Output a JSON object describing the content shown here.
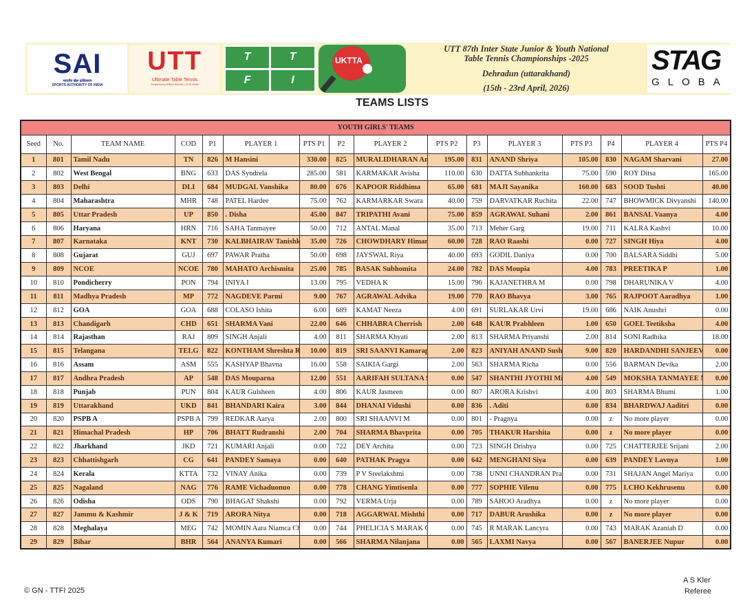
{
  "banner": {
    "sai": {
      "logo": "SAI",
      "hindi": "भारतीय खेल प्राधिकरण",
      "sub": "SPORTS AUTHORITY OF INDIA"
    },
    "utt": {
      "logo": "UTT",
      "sub": "Ultimate Table Tennis",
      "powered": "Powered by NIRAJ BAJAJ | VITA DANI"
    },
    "ttfi": [
      "T",
      "T",
      "F",
      "I"
    ],
    "uktta": "UKTTA",
    "event_line1": "UTT 87th Inter State Junior & Youth National",
    "event_line2": "Table Tennis Championships -2025",
    "location": "Dehradun (uttarakhand)",
    "dates": "(15th - 23rd April, 2026)",
    "stag": {
      "logo": "STAG",
      "sub": "GLOBA"
    }
  },
  "page_title": "TEAMS LISTS",
  "table": {
    "section_title": "YOUTH GIRLS' TEAMS",
    "headers": [
      "Seed",
      "No.",
      "TEAM NAME",
      "COD",
      "P1",
      "PLAYER 1",
      "PTS P1",
      "P2",
      "PLAYER 2",
      "PTS P2",
      "P3",
      "PLAYER 3",
      "PTS P3",
      "P4",
      "PLAYER 4",
      "PTS P4"
    ],
    "rows": [
      [
        "1",
        "801",
        "Tamil Nadu",
        "TN",
        "826",
        "M Hansini",
        "330.00",
        "825",
        "MURALIDHARAN Anany",
        "195.00",
        "831",
        "ANAND Shriya",
        "105.00",
        "830",
        "NAGAM Sharvani",
        "27.00"
      ],
      [
        "2",
        "802",
        "West Bengal",
        "BNG",
        "633",
        "DAS Syndrela",
        "285.00",
        "581",
        "KARMAKAR Avisha",
        "110.00",
        "630",
        "DATTA Subhankrita",
        "75.00",
        "590",
        "ROY Ditsa",
        "165.00"
      ],
      [
        "3",
        "803",
        "Delhi",
        "DLI",
        "684",
        "MUDGAL Vanshika",
        "80.00",
        "676",
        "KAPOOR Riddhima",
        "65.00",
        "681",
        "MAJI Sayanika",
        "160.00",
        "683",
        "SOOD Tushti",
        "40.00"
      ],
      [
        "4",
        "804",
        "Maharashtra",
        "MHR",
        "748",
        "PATEL Hardee",
        "75.00",
        "762",
        "KARMARKAR Swara",
        "40.00",
        "759",
        "DARVATKAR Ruchita",
        "22.00",
        "747",
        "BHOWMICK Divyanshi",
        "140.00"
      ],
      [
        "5",
        "805",
        "Uttar Pradesh",
        "UP",
        "850",
        ". Disha",
        "45.00",
        "847",
        "TRIPATHI Avani",
        "75.00",
        "859",
        "AGRAWAL Suhani",
        "2.00",
        "861",
        "BANSAL Vaanya",
        "4.00"
      ],
      [
        "6",
        "806",
        "Haryana",
        "HRN",
        "716",
        "SAHA Tanmayee",
        "50.00",
        "712",
        "ANTAL Manal",
        "35.00",
        "713",
        "Meher Garg",
        "19.00",
        "711",
        "KALRA Kashvi",
        "10.00"
      ],
      [
        "7",
        "807",
        "Karnataka",
        "KNT",
        "730",
        "KALBHAIRAV Tanishka",
        "35.00",
        "726",
        "CHOWDHARY Himansh",
        "60.00",
        "728",
        "RAO Raashi",
        "0.00",
        "727",
        "SINGH Hiya",
        "4.00"
      ],
      [
        "8",
        "808",
        "Gujarat",
        "GUJ",
        "697",
        "PAWAR Pratha",
        "50.00",
        "698",
        "JAYSWAL Riya",
        "40.00",
        "693",
        "GODIL Daniya",
        "0.00",
        "700",
        "BALSARA Siddhi",
        "5.00"
      ],
      [
        "9",
        "809",
        "NCOE",
        "NCOE",
        "780",
        "MAHATO Archismita",
        "25.00",
        "785",
        "BASAK Subhomita",
        "24.00",
        "782",
        "DAS Moupia",
        "4.00",
        "783",
        "PREETIKA P",
        "1.00"
      ],
      [
        "10",
        "810",
        "Pondicherry",
        "PON",
        "794",
        "INIYA I",
        "13.00",
        "795",
        "VEDHA K",
        "15.00",
        "796",
        "KAJANETHRA M",
        "0.00",
        "798",
        "DHARUNIKA V",
        "4.00"
      ],
      [
        "11",
        "811",
        "Madhya Pradesh",
        "MP",
        "772",
        "NAGDEVE Parmi",
        "9.00",
        "767",
        "AGRAWAL Advika",
        "19.00",
        "770",
        "RAO Bhavya",
        "3.00",
        "765",
        "RAJPOOT Aaradhya",
        "1.00"
      ],
      [
        "12",
        "812",
        "GOA",
        "GOA",
        "688",
        "COLASO Ishita",
        "6.00",
        "689",
        "KAMAT Neeza",
        "4.00",
        "691",
        "SURLAKAR Urvi",
        "19.00",
        "686",
        "NAIK Anushri",
        "0.00"
      ],
      [
        "13",
        "813",
        "Chandigarh",
        "CHD",
        "651",
        "SHARMA Vani",
        "22.00",
        "646",
        "CHHABRA Cherrish",
        "2.00",
        "648",
        "KAUR Prabhleen",
        "1.00",
        "650",
        "GOEL Teetiksha",
        "4.00"
      ],
      [
        "14",
        "814",
        "Rajasthan",
        "RAJ",
        "809",
        "SINGH Anjali",
        "4.00",
        "811",
        "SHARMA Khyati",
        "2.00",
        "813",
        "SHARMA Priyanshi",
        "2.00",
        "814",
        "SONI Radhika",
        "18.00"
      ],
      [
        "15",
        "815",
        "Telangana",
        "TELG",
        "822",
        "KONTHAM Shreshta Re",
        "10.00",
        "819",
        "SRI SAANVI Kamarapu",
        "2.00",
        "823",
        "ANIYAH ANAND Sushru",
        "9.00",
        "820",
        "HARDANDHI SANJEEV I",
        "0.00"
      ],
      [
        "16",
        "816",
        "Assam",
        "ASM",
        "555",
        "KASHYAP Bhavna",
        "16.00",
        "558",
        "SAIKIA Gargi",
        "2.00",
        "563",
        "SHARMA Richa",
        "0.00",
        "556",
        "BARMAN Devika",
        "2.00"
      ],
      [
        "17",
        "817",
        "Andhra Pradesh",
        "AP",
        "548",
        "DAS Mouparna",
        "12.00",
        "551",
        "AARIFAH SULTANA Sha",
        "0.00",
        "547",
        "SHANTHI JYOTHI Middi",
        "4.00",
        "549",
        "MOKSHA TANMAYEE N",
        "0.00"
      ],
      [
        "18",
        "818",
        "Punjab",
        "PUN",
        "804",
        "KAUR Gulsheen",
        "4.00",
        "806",
        "KAUR Jasmeen",
        "0.00",
        "807",
        "ARORA Krishvi",
        "4.00",
        "803",
        "SHARMA Bhumi",
        "1.00"
      ],
      [
        "19",
        "819",
        "Uttarakhand",
        "UKD",
        "841",
        "BHANDARI Kaira",
        "3.00",
        "844",
        "DHANAI Vidushi",
        "0.00",
        "836",
        ". Aditi",
        "0.00",
        "834",
        "BHARDWAJ Aaditri",
        "0.00"
      ],
      [
        "20",
        "820",
        "PSPB A",
        "PSPB A",
        "799",
        "REDKAR Aarya",
        "2.00",
        "800",
        "SRI SHAANVI M",
        "0.00",
        "801",
        "- Pragnya",
        "0.00",
        "z",
        "No more player",
        "0.00"
      ],
      [
        "21",
        "821",
        "Himachal Pradesh",
        "HP",
        "706",
        "BHATT Rudranshi",
        "2.00",
        "704",
        "SHARMA Bhavprita",
        "0.00",
        "705",
        "THAKUR Harshita",
        "0.00",
        "z",
        "No more player",
        "0.00"
      ],
      [
        "22",
        "822",
        "Jharkhand",
        "JKD",
        "721",
        "KUMARI Anjali",
        "0.00",
        "722",
        "DEY Archita",
        "0.00",
        "723",
        "SINGH Drishya",
        "0.00",
        "725",
        "CHATTERJEE Srijani",
        "2.00"
      ],
      [
        "23",
        "823",
        "Chhattishgarh",
        "CG",
        "641",
        "PANDEY Samaya",
        "0.00",
        "640",
        "PATHAK Pragya",
        "0.00",
        "642",
        "MENGHANI Siya",
        "0.00",
        "639",
        "PANDEY Lavnya",
        "1.00"
      ],
      [
        "24",
        "824",
        "Kerala",
        "KTTA",
        "732",
        "VINAY Anika",
        "0.00",
        "739",
        "P V Sreelakshmi",
        "0.00",
        "738",
        "UNNI CHANDRAN Prada",
        "0.00",
        "731",
        "SHAJAN Angel Mariya",
        "0.00"
      ],
      [
        "25",
        "825",
        "Nagaland",
        "NAG",
        "776",
        "RAME Vichaduonuo",
        "0.00",
        "778",
        "CHANG Yimtisenla",
        "0.00",
        "777",
        "SOPHIE Vilenu",
        "0.00",
        "775",
        "LCHO Kekhrusenu",
        "0.00"
      ],
      [
        "26",
        "826",
        "Odisha",
        "ODS",
        "790",
        "BHAGAT Shakshi",
        "0.00",
        "792",
        "VERMA Urja",
        "0.00",
        "789",
        "SAHOO Aradhya",
        "0.00",
        "z",
        "No more player",
        "0.00"
      ],
      [
        "27",
        "827",
        "Jammu & Kashmir",
        "J & K",
        "719",
        "ARORA Nitya",
        "0.00",
        "718",
        "AGGARWAL Mishthi",
        "0.00",
        "717",
        "DABUR Arushika",
        "0.00",
        "z",
        "No more player",
        "0.00"
      ],
      [
        "28",
        "828",
        "Meghalaya",
        "MEG",
        "742",
        "MOMIN Aara Niamca Ch",
        "0.00",
        "744",
        "PHELICIA S MARAK Cle",
        "0.00",
        "745",
        "R MARAK Lancyra",
        "0.00",
        "743",
        "MARAK Azaniah D",
        "0.00"
      ],
      [
        "29",
        "829",
        "Bihar",
        "BHR",
        "564",
        "ANANYA Kumari",
        "0.00",
        "566",
        "SHARMA Nilanjana",
        "0.00",
        "565",
        "LAXMI Navya",
        "0.00",
        "567",
        "BANERJEE Nupur",
        "0.00"
      ]
    ]
  },
  "footer": {
    "copyright": "© GN - TTFI  2025",
    "referee_name": "A S Kler",
    "referee_label": "Referee"
  },
  "colors": {
    "title_bar": "#ef8480",
    "odd_row": "#f6d2ad",
    "odd_text": "#5a2c0a",
    "banner": "#fbf2c6"
  }
}
